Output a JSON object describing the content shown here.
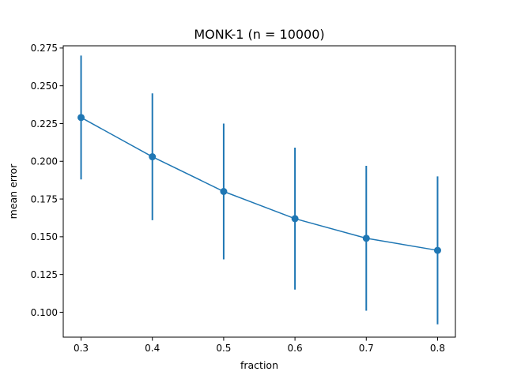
{
  "chart_data": {
    "type": "line",
    "title": "MONK-1 (n = 10000)",
    "xlabel": "fraction",
    "ylabel": "mean error",
    "x": [
      0.3,
      0.4,
      0.5,
      0.6,
      0.7,
      0.8
    ],
    "series": [
      {
        "values": [
          0.229,
          0.203,
          0.18,
          0.162,
          0.149,
          0.141
        ],
        "err_low": [
          0.188,
          0.161,
          0.135,
          0.115,
          0.101,
          0.092
        ],
        "err_high": [
          0.27,
          0.245,
          0.225,
          0.209,
          0.197,
          0.19
        ],
        "color": "#1f77b4"
      }
    ],
    "xlim": [
      0.275,
      0.825
    ],
    "ylim": [
      0.0835,
      0.2765
    ],
    "xticks": [
      0.3,
      0.4,
      0.5,
      0.6,
      0.7,
      0.8
    ],
    "xtick_labels": [
      "0.3",
      "0.4",
      "0.5",
      "0.6",
      "0.7",
      "0.8"
    ],
    "yticks": [
      0.1,
      0.125,
      0.15,
      0.175,
      0.2,
      0.225,
      0.25,
      0.275
    ],
    "ytick_labels": [
      "0.100",
      "0.125",
      "0.150",
      "0.175",
      "0.200",
      "0.225",
      "0.250",
      "0.275"
    ],
    "grid": false,
    "legend": "none"
  }
}
